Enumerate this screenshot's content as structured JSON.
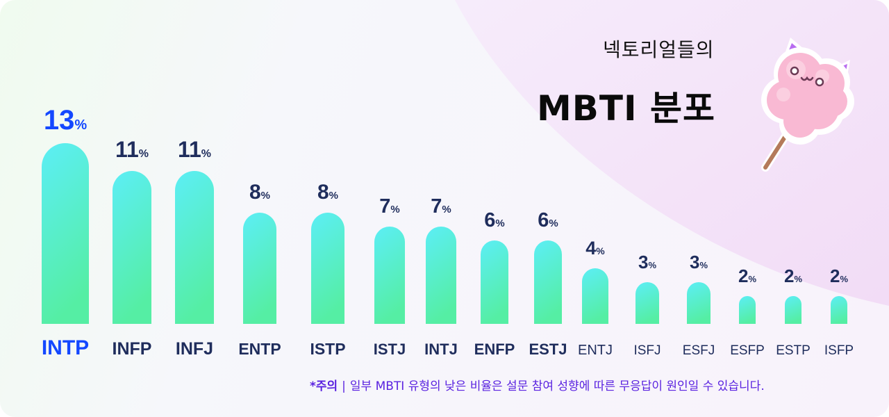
{
  "header": {
    "subtitle": "넥토리얼들의",
    "title": "MBTI 분포"
  },
  "footnote": {
    "label": "*주의",
    "separator": "|",
    "text": "일부 MBTI 유형의 낮은 비율은 설문 참여 성향에 따른 무응답이 원인일 수 있습니다."
  },
  "mascot": {
    "icon": "cotton-candy-mascot-icon"
  },
  "colors": {
    "highlight": "#1448ff",
    "value_text": "#1f2d5c",
    "bar_top": "#5ceef6",
    "bar_bottom": "#55eea4",
    "note": "#5a22e0"
  },
  "chart_data": {
    "type": "bar",
    "categories": [
      "INTP",
      "INFP",
      "INFJ",
      "ENTP",
      "ISTP",
      "ISTJ",
      "INTJ",
      "ENFP",
      "ESTJ",
      "ENTJ",
      "ISFJ",
      "ESFJ",
      "ESFP",
      "ESTP",
      "ISFP"
    ],
    "values": [
      13,
      11,
      11,
      8,
      8,
      7,
      7,
      6,
      6,
      4,
      3,
      3,
      2,
      2,
      2
    ],
    "unit": "%",
    "highlight_category": "INTP",
    "xlabel": "",
    "ylabel": "",
    "grid": false,
    "legend": "none"
  }
}
